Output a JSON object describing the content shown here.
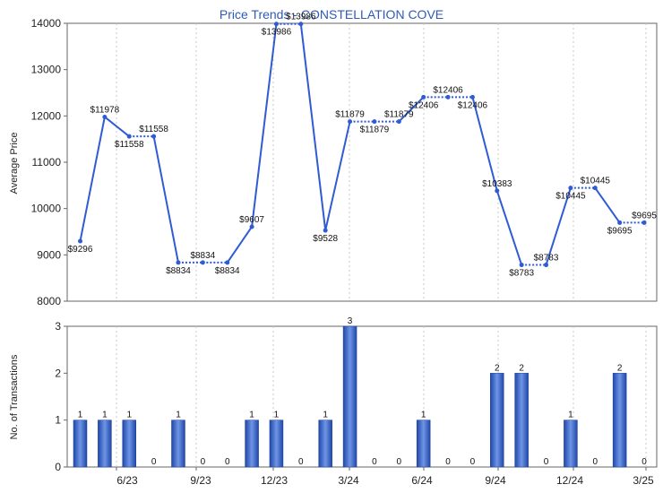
{
  "chart_data": [
    {
      "type": "line",
      "title": "Price Trends - CONSTELLATION COVE",
      "ylabel": "Average Price",
      "ylim": [
        8000,
        14000
      ],
      "yticks": [
        8000,
        9000,
        10000,
        11000,
        12000,
        13000,
        14000
      ],
      "x_tick_labels": [
        "6/23",
        "9/23",
        "12/23",
        "3/24",
        "6/24",
        "9/24",
        "12/24",
        "3/25"
      ],
      "grid": "vertical dashed",
      "legend": "none",
      "color": "#2f5bd3",
      "points": [
        {
          "i": 0,
          "value": 9296,
          "label": "$9296",
          "style": "solid"
        },
        {
          "i": 1,
          "value": 11978,
          "label": "$11978",
          "style": "solid"
        },
        {
          "i": 2,
          "value": 11558,
          "label": "$11558",
          "style": "solid"
        },
        {
          "i": 3,
          "value": 11558,
          "label": "$11558",
          "style": "dotted"
        },
        {
          "i": 4,
          "value": 8834,
          "label": "$8834",
          "style": "solid"
        },
        {
          "i": 5,
          "value": 8834,
          "label": "$8834",
          "style": "dotted"
        },
        {
          "i": 6,
          "value": 8834,
          "label": "$8834",
          "style": "dotted"
        },
        {
          "i": 7,
          "value": 9607,
          "label": "$9607",
          "style": "solid"
        },
        {
          "i": 8,
          "value": 13986,
          "label": "$13986",
          "style": "solid"
        },
        {
          "i": 9,
          "value": 13986,
          "label": "$13986",
          "style": "dotted"
        },
        {
          "i": 10,
          "value": 9528,
          "label": "$9528",
          "style": "solid"
        },
        {
          "i": 11,
          "value": 11879,
          "label": "$11879",
          "style": "solid"
        },
        {
          "i": 12,
          "value": 11879,
          "label": "$11879",
          "style": "dotted"
        },
        {
          "i": 13,
          "value": 11879,
          "label": "$11879",
          "style": "dotted"
        },
        {
          "i": 14,
          "value": 12406,
          "label": "$12406",
          "style": "solid"
        },
        {
          "i": 15,
          "value": 12406,
          "label": "$12406",
          "style": "dotted"
        },
        {
          "i": 16,
          "value": 12406,
          "label": "$12406",
          "style": "dotted"
        },
        {
          "i": 17,
          "value": 10383,
          "label": "$10383",
          "style": "solid"
        },
        {
          "i": 18,
          "value": 8783,
          "label": "$8783",
          "style": "solid"
        },
        {
          "i": 19,
          "value": 8783,
          "label": "$8783",
          "style": "dotted"
        },
        {
          "i": 20,
          "value": 10445,
          "label": "$10445",
          "style": "solid"
        },
        {
          "i": 21,
          "value": 10445,
          "label": "$10445",
          "style": "dotted"
        },
        {
          "i": 22,
          "value": 9695,
          "label": "$9695",
          "style": "solid"
        },
        {
          "i": 23,
          "value": 9695,
          "label": "$9695",
          "style": "dotted"
        }
      ]
    },
    {
      "type": "bar",
      "ylabel": "No. of Transactions",
      "ylim": [
        0,
        3
      ],
      "yticks": [
        0,
        1,
        2,
        3
      ],
      "x_tick_labels": [
        "6/23",
        "9/23",
        "12/23",
        "3/24",
        "6/24",
        "9/24",
        "12/24",
        "3/25"
      ],
      "color": "#3560c9",
      "values": [
        1,
        1,
        1,
        0,
        1,
        0,
        0,
        1,
        1,
        0,
        1,
        3,
        0,
        0,
        1,
        0,
        0,
        2,
        2,
        0,
        1,
        0,
        2,
        0
      ]
    }
  ]
}
